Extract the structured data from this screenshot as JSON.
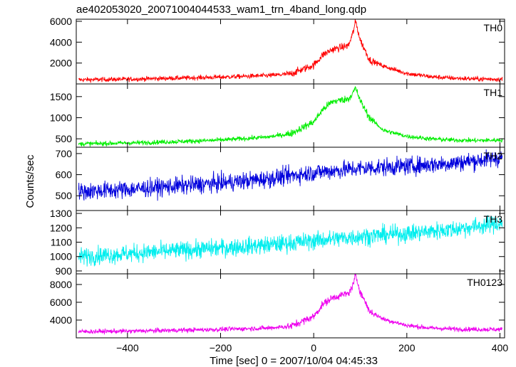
{
  "title": "ae402053020_20071004044533_wam1_trn_4band_long.qdp",
  "chart_data": {
    "type": "line",
    "title": "ae402053020_20071004044533_wam1_trn_4band_long.qdp",
    "xlabel": "Time [sec] 0 = 2007/10/04 04:45:33",
    "ylabel": "Counts/sec",
    "xlim": [
      -510,
      410
    ],
    "x_ticks": [
      -400,
      -200,
      0,
      200,
      400
    ],
    "x_tick_labels": [
      "−400",
      "−200",
      "0",
      "200",
      "400"
    ],
    "grid": false,
    "panels": [
      {
        "name": "TH0",
        "color": "#ff0000",
        "ylim": [
          0,
          6200
        ],
        "y_ticks": [
          2000,
          4000,
          6000
        ],
        "y_tick_labels": [
          "2000",
          "4000",
          "6000"
        ],
        "x": [
          -500,
          -400,
          -300,
          -200,
          -100,
          -50,
          0,
          20,
          40,
          60,
          75,
          85,
          90,
          100,
          120,
          150,
          200,
          250,
          300,
          350,
          400
        ],
        "y": [
          400,
          450,
          550,
          650,
          800,
          950,
          1800,
          2800,
          3300,
          3500,
          3700,
          5000,
          6000,
          4200,
          2300,
          1700,
          1000,
          700,
          550,
          480,
          450
        ]
      },
      {
        "name": "TH1",
        "color": "#00ee00",
        "ylim": [
          300,
          1800
        ],
        "y_ticks": [
          500,
          1000,
          1500
        ],
        "y_tick_labels": [
          "500",
          "1000",
          "1500"
        ],
        "x": [
          -500,
          -400,
          -300,
          -200,
          -100,
          -50,
          0,
          20,
          40,
          60,
          75,
          85,
          90,
          100,
          120,
          150,
          200,
          250,
          300,
          350,
          400
        ],
        "y": [
          380,
          400,
          430,
          470,
          540,
          620,
          900,
          1200,
          1380,
          1420,
          1450,
          1600,
          1700,
          1400,
          1000,
          700,
          560,
          500,
          470,
          460,
          470
        ]
      },
      {
        "name": "TH2",
        "color": "#0000dd",
        "ylim": [
          430,
          730
        ],
        "y_ticks": [
          500,
          600,
          700
        ],
        "y_tick_labels": [
          "500",
          "600",
          "700"
        ],
        "x": [
          -500,
          -400,
          -300,
          -200,
          -100,
          0,
          100,
          200,
          300,
          400
        ],
        "y": [
          520,
          530,
          545,
          560,
          580,
          610,
          630,
          640,
          655,
          680
        ]
      },
      {
        "name": "TH3",
        "color": "#00eeee",
        "ylim": [
          880,
          1320
        ],
        "y_ticks": [
          900,
          1000,
          1100,
          1200,
          1300
        ],
        "y_tick_labels": [
          "900",
          "1000",
          "1100",
          "1200",
          "1300"
        ],
        "x": [
          -500,
          -400,
          -300,
          -200,
          -100,
          0,
          100,
          200,
          300,
          400
        ],
        "y": [
          1000,
          1020,
          1040,
          1060,
          1080,
          1110,
          1140,
          1160,
          1190,
          1230
        ]
      },
      {
        "name": "TH0123",
        "color": "#ee00ee",
        "ylim": [
          2000,
          9200
        ],
        "y_ticks": [
          4000,
          6000,
          8000
        ],
        "y_tick_labels": [
          "4000",
          "6000",
          "8000"
        ],
        "x": [
          -500,
          -400,
          -300,
          -200,
          -100,
          -50,
          0,
          20,
          40,
          60,
          75,
          85,
          90,
          100,
          120,
          150,
          200,
          250,
          300,
          350,
          400
        ],
        "y": [
          2700,
          2750,
          2850,
          2950,
          3100,
          3300,
          4400,
          5800,
          6500,
          6800,
          7000,
          8000,
          9000,
          7200,
          5000,
          4100,
          3400,
          3100,
          3000,
          2950,
          2950
        ]
      }
    ]
  }
}
